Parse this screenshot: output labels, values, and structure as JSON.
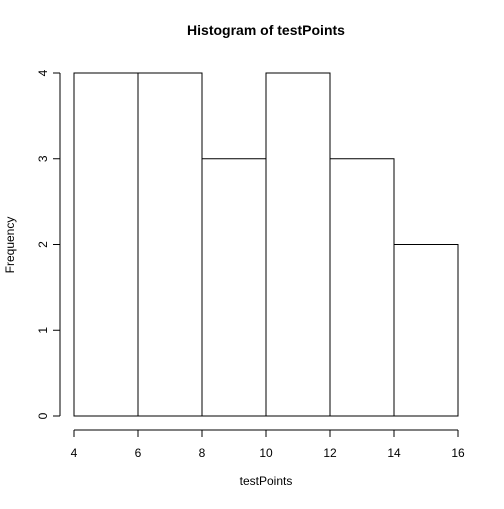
{
  "chart_data": {
    "type": "bar",
    "title": "Histogram of testPoints",
    "xlabel": "testPoints",
    "ylabel": "Frequency",
    "bins": [
      {
        "start": 4,
        "end": 6,
        "count": 4
      },
      {
        "start": 6,
        "end": 8,
        "count": 4
      },
      {
        "start": 8,
        "end": 10,
        "count": 3
      },
      {
        "start": 10,
        "end": 12,
        "count": 4
      },
      {
        "start": 12,
        "end": 14,
        "count": 3
      },
      {
        "start": 14,
        "end": 16,
        "count": 2
      }
    ],
    "xlim": [
      4,
      16
    ],
    "ylim": [
      0,
      4
    ],
    "x_ticks": [
      "4",
      "6",
      "8",
      "10",
      "12",
      "14",
      "16"
    ],
    "y_ticks": [
      "0",
      "1",
      "2",
      "3",
      "4"
    ],
    "grid": false,
    "bar_fill": "#ffffff",
    "bar_stroke": "#000000"
  }
}
